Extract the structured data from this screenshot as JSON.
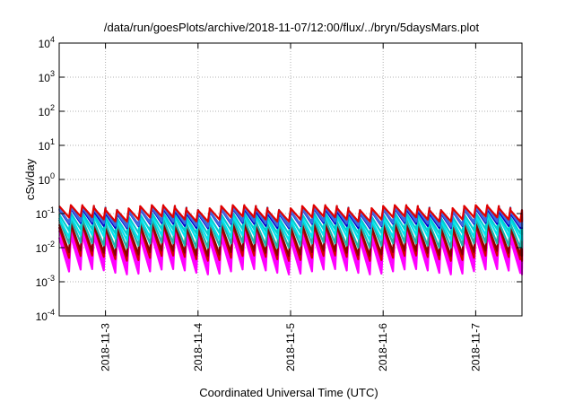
{
  "chart_data": {
    "type": "line",
    "title": "/data/run/goesPlots/archive/2018-11-07/12:00/flux/../bryn/5daysMars.plot",
    "xlabel": "Coordinated Universal Time (UTC)",
    "ylabel": "cSv/day",
    "y_scale": "log",
    "ylim": [
      0.0001,
      10000
    ],
    "y_ticks": [
      {
        "base": "10",
        "exp": "-4"
      },
      {
        "base": "10",
        "exp": "-3"
      },
      {
        "base": "10",
        "exp": "-2"
      },
      {
        "base": "10",
        "exp": "-1"
      },
      {
        "base": "10",
        "exp": "0"
      },
      {
        "base": "10",
        "exp": "1"
      },
      {
        "base": "10",
        "exp": "2"
      },
      {
        "base": "10",
        "exp": "3"
      },
      {
        "base": "10",
        "exp": "4"
      }
    ],
    "xlim": [
      "2018-11-02 12:00",
      "2018-11-07 12:00"
    ],
    "x_ticks": [
      "2018-11-3",
      "2018-11-4",
      "2018-11-5",
      "2018-11-6",
      "2018-11-7"
    ],
    "grid": true,
    "legend": "none",
    "cycles_per_day": 8,
    "series": [
      {
        "color": "#ff00ff",
        "peak": 0.02,
        "trough": 0.002
      },
      {
        "color": "#ff00ff",
        "peak": 0.03,
        "trough": 0.003
      },
      {
        "color": "#ff00ff",
        "peak": 0.035,
        "trough": 0.004
      },
      {
        "color": "#d40000",
        "peak": 0.04,
        "trough": 0.005
      },
      {
        "color": "#8b0000",
        "peak": 0.045,
        "trough": 0.007
      },
      {
        "color": "#20b2aa",
        "peak": 0.06,
        "trough": 0.012
      },
      {
        "color": "#00e5ee",
        "peak": 0.075,
        "trough": 0.02
      },
      {
        "color": "#00ced1",
        "peak": 0.09,
        "trough": 0.03
      },
      {
        "color": "#0000cd",
        "peak": 0.12,
        "trough": 0.045
      },
      {
        "color": "#1e64c8",
        "peak": 0.14,
        "trough": 0.055
      },
      {
        "color": "#4169e1",
        "peak": 0.13,
        "trough": 0.05
      },
      {
        "color": "#e00000",
        "peak": 0.15,
        "trough": 0.07
      }
    ]
  }
}
